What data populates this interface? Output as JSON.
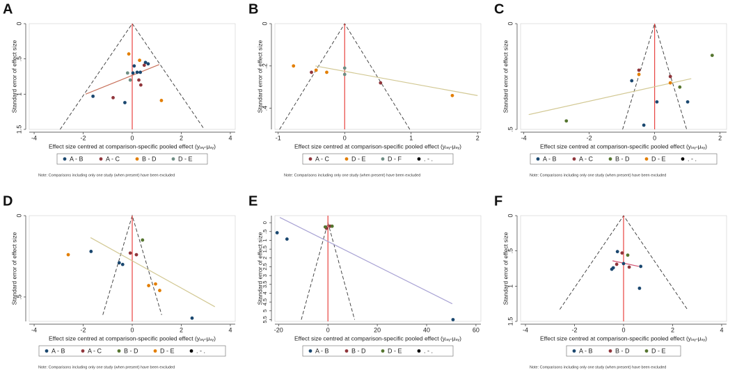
{
  "chart_data": [
    {
      "type": "scatter",
      "panel": "A",
      "y_label": "Standard error of effect size",
      "x_label": "Effect size centred at comparison-specific pooled effect (yᵢₓᵧ-μₓᵧ)",
      "note": "Note: Comparisons including only one study (when present) have been excluded",
      "xlim": [
        -4.2,
        4.2
      ],
      "xticks": [
        -4,
        -2,
        0,
        2,
        4
      ],
      "ylim": [
        0,
        1.5
      ],
      "yticks": [
        0,
        {
          "value": 0.5,
          "label": ".5"
        },
        1,
        1.5
      ],
      "reference_x": 0,
      "funnel": {
        "x": [
          -2.94,
          0,
          2.94
        ],
        "y": [
          1.5,
          0,
          1.5
        ]
      },
      "fit_line": {
        "color": "#c8705a",
        "x": [
          -1.9,
          1.1
        ],
        "y": [
          1.0,
          0.58
        ]
      },
      "series": [
        {
          "name": "A - B",
          "color": "#1a476f",
          "x": [
            0.08,
            0.2,
            0.54,
            0.65,
            -1.6,
            -0.3,
            0.33,
            0.03
          ],
          "values": [
            0.6,
            0.69,
            0.55,
            0.57,
            1.03,
            1.12,
            0.69,
            0.7
          ]
        },
        {
          "name": "A - C",
          "color": "#90353b",
          "x": [
            -0.78,
            0.35,
            0.49,
            0.27
          ],
          "values": [
            1.05,
            0.87,
            0.59,
            0.8
          ]
        },
        {
          "name": "B - D",
          "color": "#e37e00",
          "x": [
            -0.14,
            1.19,
            0.3
          ],
          "values": [
            0.43,
            1.09,
            0.52
          ]
        },
        {
          "name": "D - E",
          "color": "#6e8e84",
          "x": [
            -0.08,
            -0.19
          ],
          "values": [
            0.8,
            0.7
          ]
        }
      ]
    },
    {
      "type": "scatter",
      "panel": "B",
      "y_label": "Standard error of effect size",
      "x_label": "Effect size centred at comparison-specific pooled effect (yᵢₓᵧ-μₓᵧ)",
      "note": "Note: Comparisons including only one study (when present) have been excluded",
      "xlim": [
        -1.05,
        2.05
      ],
      "xticks": [
        -1,
        0,
        1,
        2
      ],
      "ylim": [
        0,
        0.5
      ],
      "yticks": [
        0,
        {
          "value": 0.2,
          "label": ".2"
        },
        {
          "value": 0.4,
          "label": ".4"
        }
      ],
      "reference_x": 0,
      "funnel": {
        "x": [
          -0.98,
          0,
          0.98
        ],
        "y": [
          0.5,
          0,
          0.5
        ]
      },
      "fit_line": {
        "color": "#d2c893",
        "x": [
          -0.44,
          2.0
        ],
        "y": [
          0.2,
          0.34
        ]
      },
      "series": [
        {
          "name": "A - C",
          "color": "#90353b",
          "x": [
            -0.5,
            0.54
          ],
          "values": [
            0.23,
            0.28
          ]
        },
        {
          "name": "D - E",
          "color": "#e37e00",
          "x": [
            -0.77,
            -0.43,
            -0.27,
            1.62
          ],
          "values": [
            0.2,
            0.22,
            0.23,
            0.34
          ]
        },
        {
          "name": "D - F",
          "color": "#6e8e84",
          "x": [
            0,
            0
          ],
          "values": [
            0.21,
            0.24
          ]
        },
        {
          "name": ". - .",
          "color": "#000000",
          "x": [],
          "values": []
        }
      ]
    },
    {
      "type": "scatter",
      "panel": "C",
      "y_label": "Standard error of effect size",
      "x_label": "Effect size centred at comparison-specific pooled effect (yᵢₓᵧ-μₓᵧ)",
      "note": "Note: Comparisons including only one study (when present) have been excluded",
      "xlim": [
        -4.1,
        2.2
      ],
      "xticks": [
        -4,
        -2,
        0,
        2
      ],
      "ylim": [
        0,
        0.5
      ],
      "yticks": [
        0,
        {
          "value": 0.5,
          "label": ".5"
        }
      ],
      "reference_x": 0,
      "funnel": {
        "x": [
          -0.98,
          0,
          0.98
        ],
        "y": [
          0.5,
          0,
          0.5
        ]
      },
      "fit_line": {
        "color": "#d2c893",
        "x": [
          -3.85,
          1.12
        ],
        "y": [
          0.43,
          0.26
        ]
      },
      "series": [
        {
          "name": "A - B",
          "color": "#1a476f",
          "x": [
            -0.7,
            0.07,
            1.01,
            -0.33
          ],
          "values": [
            0.27,
            0.37,
            0.37,
            0.48
          ]
        },
        {
          "name": "A - C",
          "color": "#90353b",
          "x": [
            -0.48,
            0.48
          ],
          "values": [
            0.22,
            0.25
          ]
        },
        {
          "name": "B - D",
          "color": "#55752f",
          "x": [
            1.76,
            0.77,
            -2.7
          ],
          "values": [
            0.15,
            0.3,
            0.46
          ]
        },
        {
          "name": "D - E",
          "color": "#e37e00",
          "x": [
            -0.48,
            0.48
          ],
          "values": [
            0.24,
            0.28
          ]
        },
        {
          "name": ". - .",
          "color": "#000000",
          "x": [],
          "values": []
        }
      ]
    },
    {
      "type": "scatter",
      "panel": "D",
      "y_label": "Standard error of effect size",
      "x_label": "Effect size centred at comparison-specific pooled effect (yᵢₓᵧ-μₓᵧ)",
      "note": "Note: Comparisons including only one study (when present) have been excluded",
      "xlim": [
        -4.2,
        4.2
      ],
      "xticks": [
        -4,
        -2,
        0,
        2,
        4
      ],
      "ylim": [
        0,
        0.65
      ],
      "yticks": [
        0,
        {
          "value": 0.5,
          "label": ".5"
        }
      ],
      "reference_x": 0,
      "funnel": {
        "x": [
          -1.2,
          0,
          1.2
        ],
        "y": [
          0.61,
          0,
          0.61
        ]
      },
      "fit_line": {
        "color": "#d2c893",
        "x": [
          -1.7,
          3.37
        ],
        "y": [
          0.135,
          0.56
        ]
      },
      "series": [
        {
          "name": "A - B",
          "color": "#1a476f",
          "x": [
            -1.68,
            -0.53,
            -0.39,
            2.44
          ],
          "values": [
            0.22,
            0.29,
            0.3,
            0.63
          ]
        },
        {
          "name": "A - C",
          "color": "#90353b",
          "x": [
            -0.08,
            0.17
          ],
          "values": [
            0.23,
            0.24
          ]
        },
        {
          "name": "B - D",
          "color": "#55752f",
          "x": [
            0.42
          ],
          "values": [
            0.15
          ]
        },
        {
          "name": "D - E",
          "color": "#e37e00",
          "x": [
            -2.61,
            0.67,
            0.95,
            1.12
          ],
          "values": [
            0.24,
            0.43,
            0.42,
            0.46
          ]
        },
        {
          "name": ". - .",
          "color": "#000000",
          "x": [],
          "values": []
        }
      ]
    },
    {
      "type": "scatter",
      "panel": "E",
      "y_label": "Standard error of effect size",
      "x_label": "Effect size centred at comparison-specific pooled effect (yᵢₓᵧ-μₓᵧ)",
      "xlim": [
        -21.5,
        62
      ],
      "xticks": [
        -20,
        0,
        20,
        40,
        60
      ],
      "ylim": [
        -0.4,
        5.6
      ],
      "yticks": [
        0,
        {
          "value": 0.5,
          "label": ".5"
        },
        1,
        1.5,
        2,
        2.5,
        3,
        3.5,
        4,
        4.5,
        5,
        5.5
      ],
      "reference_x": 0,
      "funnel": {
        "x": [
          -10.8,
          0,
          10.8
        ],
        "y": [
          5.5,
          0,
          5.5
        ]
      },
      "fit_line": {
        "color": "#a9a3d4",
        "x": [
          -19.5,
          50.4
        ],
        "y": [
          -0.3,
          4.6
        ]
      },
      "series": [
        {
          "name": "A - B",
          "color": "#1a476f",
          "x": [
            -20.6,
            -16.6,
            50.7
          ],
          "values": [
            0.57,
            0.93,
            5.5
          ]
        },
        {
          "name": "B - D",
          "color": "#90353b",
          "x": [
            -0.6,
            0.9
          ],
          "values": [
            0.32,
            0.2
          ]
        },
        {
          "name": "D - E",
          "color": "#55752f",
          "x": [
            -1.1,
            1.7
          ],
          "values": [
            0.24,
            0.2
          ]
        },
        {
          "name": ". - .",
          "color": "#000000",
          "x": [],
          "values": []
        }
      ]
    },
    {
      "type": "scatter",
      "panel": "F",
      "y_label": "Standard error of effect size",
      "x_label": "Effect size centred at comparison-specific pooled effect (yᵢₓᵧ-μₓᵧ)",
      "note": "Note: Comparisons including only one study (when present) have been excluded",
      "xlim": [
        -4.2,
        4.2
      ],
      "xticks": [
        -4,
        -2,
        0,
        2,
        4
      ],
      "ylim": [
        0,
        1.5
      ],
      "yticks": [
        0,
        {
          "value": 0.5,
          "label": ".5"
        },
        1,
        1.5
      ],
      "reference_x": 0,
      "funnel": {
        "x": [
          -2.6,
          0,
          2.6
        ],
        "y": [
          1.33,
          0,
          1.33
        ]
      },
      "fit_line": {
        "color": "#d05070",
        "x": [
          -0.45,
          0.62
        ],
        "y": [
          0.64,
          0.72
        ]
      },
      "series": [
        {
          "name": "A - B",
          "color": "#1a476f",
          "x": [
            -0.25,
            -0.42,
            -0.48,
            0,
            0.7,
            0.65
          ],
          "values": [
            0.51,
            0.74,
            0.76,
            0.68,
            0.72,
            1.03
          ]
        },
        {
          "name": "B - D",
          "color": "#90353b",
          "x": [
            -0.06,
            -0.28,
            0.23
          ],
          "values": [
            0.53,
            0.69,
            0.73
          ]
        },
        {
          "name": "D - E",
          "color": "#55752f",
          "x": [
            0.17
          ],
          "values": [
            0.56
          ]
        }
      ]
    }
  ]
}
